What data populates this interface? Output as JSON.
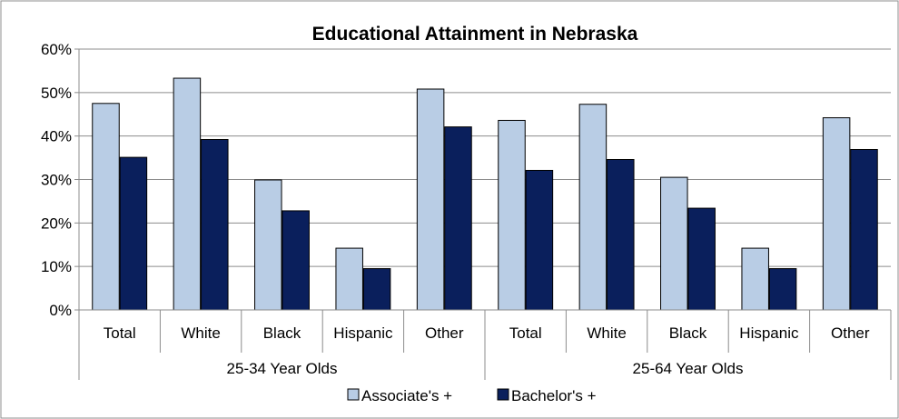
{
  "chart_data": {
    "type": "bar",
    "title": "Educational Attainment in Nebraska",
    "xlabel": "",
    "ylabel": "",
    "ylim": [
      0,
      0.6
    ],
    "yticks": [
      0,
      0.1,
      0.2,
      0.3,
      0.4,
      0.5,
      0.6
    ],
    "ytick_labels": [
      "0%",
      "10%",
      "20%",
      "30%",
      "40%",
      "50%",
      "60%"
    ],
    "grid": true,
    "legend_position": "bottom",
    "groups": [
      {
        "label": "25-34 Year Olds",
        "categories": [
          "Total",
          "White",
          "Black",
          "Hispanic",
          "Other"
        ]
      },
      {
        "label": "25-64 Year Olds",
        "categories": [
          "Total",
          "White",
          "Black",
          "Hispanic",
          "Other"
        ]
      }
    ],
    "series": [
      {
        "name": "Associate's +",
        "color": "#b9cde5",
        "values": [
          0.475,
          0.533,
          0.299,
          0.142,
          0.508,
          0.436,
          0.473,
          0.305,
          0.142,
          0.442
        ]
      },
      {
        "name": "Bachelor's +",
        "color": "#0a1f5c",
        "values": [
          0.351,
          0.392,
          0.228,
          0.095,
          0.421,
          0.321,
          0.346,
          0.234,
          0.095,
          0.369
        ]
      }
    ]
  }
}
